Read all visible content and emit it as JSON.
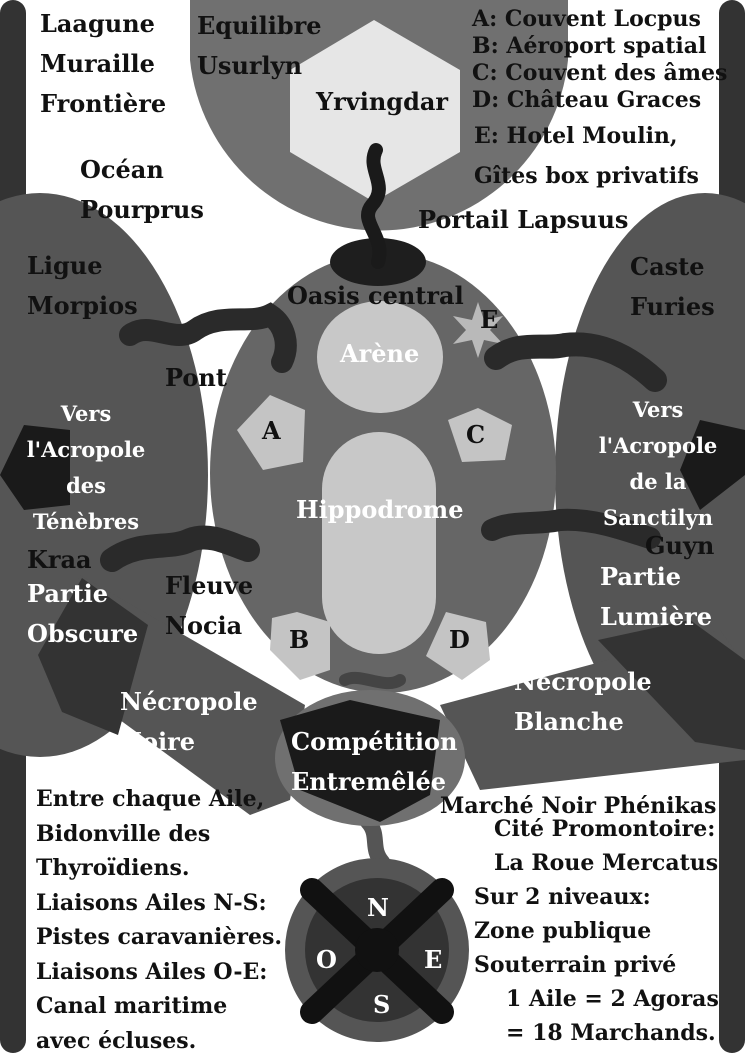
{
  "legend": [
    "A: Couvent Locpus",
    "B: Aéroport spatial",
    "C: Couvent des âmes",
    "D: Château Graces",
    "E: Hotel Moulin,",
    "Gîtes box privatifs"
  ],
  "regions": {
    "laagune": [
      "Laagune",
      "Muraille",
      "Frontière"
    ],
    "equilibre": [
      "Equilibre",
      "Usurlyn"
    ],
    "yrvingdar": "Yrvingdar",
    "ocean": [
      "Océan",
      "Pourprus"
    ],
    "portail": "Portail Lapsuus",
    "ligue": [
      "Ligue",
      "Morpios"
    ],
    "caste": [
      "Caste",
      "Furies"
    ],
    "oasis": "Oasis central",
    "arene": "Arène",
    "hippodrome": "Hippodrome",
    "pont": "Pont",
    "acropole_tenebres": [
      "Vers",
      "l'Acropole",
      "des",
      "Ténèbres"
    ],
    "acropole_sanctilyn": [
      "Vers",
      "l'Acropole",
      "de la",
      "Sanctilyn"
    ],
    "kraa": "Kraa",
    "guyn": "Guyn",
    "partie_obscure": [
      "Partie",
      "Obscure"
    ],
    "partie_lumiere": [
      "Partie",
      "Lumière"
    ],
    "fleuve": [
      "Fleuve",
      "Nocia"
    ],
    "necropole_noire": [
      "Nécropole",
      "Noire"
    ],
    "necropole_blanche": [
      "Nécropole",
      "Blanche"
    ],
    "competition": [
      "Compétition",
      "Entremêlée"
    ],
    "marche": "Marché Noir Phénikas",
    "cite": [
      "Cité Promontoire:",
      "La Roue Mercatus",
      "Sur 2 niveaux:",
      "Zone publique",
      "Souterrain privé",
      "1 Aile = 2 Agoras",
      "= 18 Marchands."
    ]
  },
  "notes_left": [
    "Entre chaque Aile,",
    "Bidonville des",
    "Thyroïdiens.",
    "Liaisons Ailes N-S:",
    "Pistes caravanières.",
    "Liaisons Ailes O-E:",
    "Canal maritime",
    "avec écluses."
  ],
  "markers": {
    "a": "A",
    "b": "B",
    "c": "C",
    "d": "D",
    "e": "E"
  },
  "compass": {
    "n": "N",
    "s": "S",
    "o": "O",
    "e": "E"
  }
}
